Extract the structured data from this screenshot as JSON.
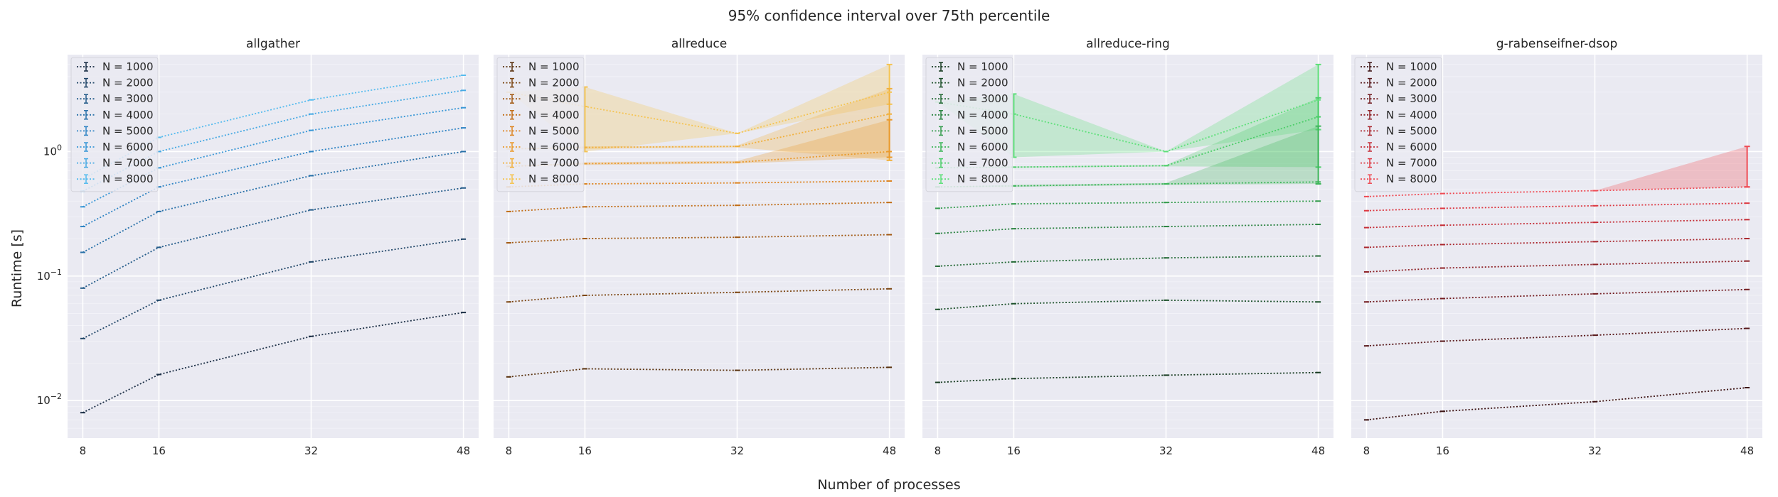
{
  "figure": {
    "title": "95% confidence interval over 75th percentile",
    "xlabel": "Number of processes",
    "ylabel": "Runtime [s]"
  },
  "chart_data": [
    {
      "type": "line",
      "title": "allgather",
      "x": [
        8,
        16,
        32,
        48
      ],
      "y_scale": "log",
      "ylim": [
        0.005,
        6
      ],
      "y_ticks": [
        0.01,
        0.1,
        1
      ],
      "y_tick_labels": [
        "10^-2",
        "10^-1",
        "10^0"
      ],
      "x_ticks": [
        8,
        16,
        32,
        48
      ],
      "legend_position": "upper-left",
      "series": [
        {
          "name": "N = 1000",
          "color": "#1b2e45",
          "values": [
            0.008,
            0.0162,
            0.0328,
            0.051
          ]
        },
        {
          "name": "N = 2000",
          "color": "#1f4567",
          "values": [
            0.0315,
            0.064,
            0.13,
            0.198
          ]
        },
        {
          "name": "N = 3000",
          "color": "#235b89",
          "values": [
            0.08,
            0.17,
            0.34,
            0.51
          ]
        },
        {
          "name": "N = 4000",
          "color": "#2770a8",
          "values": [
            0.155,
            0.33,
            0.64,
            1.0
          ]
        },
        {
          "name": "N = 5000",
          "color": "#2f84c4",
          "values": [
            0.25,
            0.52,
            1.0,
            1.55
          ]
        },
        {
          "name": "N = 6000",
          "color": "#3997d6",
          "values": [
            0.36,
            0.74,
            1.48,
            2.25
          ]
        },
        {
          "name": "N = 7000",
          "color": "#46a9e3",
          "values": [
            0.48,
            1.0,
            2.0,
            3.1
          ]
        },
        {
          "name": "N = 8000",
          "color": "#55bbee",
          "values": [
            0.6,
            1.3,
            2.6,
            4.1
          ]
        }
      ],
      "intervals": []
    },
    {
      "type": "line",
      "title": "allreduce",
      "x": [
        8,
        16,
        32,
        48
      ],
      "y_scale": "log",
      "ylim": [
        0.005,
        6
      ],
      "y_ticks": [
        0.01,
        0.1,
        1
      ],
      "y_tick_labels": [
        "",
        "",
        ""
      ],
      "x_ticks": [
        8,
        16,
        32,
        48
      ],
      "legend_position": "upper-left",
      "series": [
        {
          "name": "N = 1000",
          "color": "#5a3310",
          "values": [
            0.0155,
            0.018,
            0.0175,
            0.0185
          ]
        },
        {
          "name": "N = 2000",
          "color": "#7c4612",
          "values": [
            0.062,
            0.07,
            0.074,
            0.079
          ]
        },
        {
          "name": "N = 3000",
          "color": "#a25a14",
          "values": [
            0.185,
            0.2,
            0.205,
            0.215
          ]
        },
        {
          "name": "N = 4000",
          "color": "#c26e17",
          "values": [
            0.33,
            0.36,
            0.37,
            0.39
          ]
        },
        {
          "name": "N = 5000",
          "color": "#dd8420",
          "values": [
            0.52,
            0.55,
            0.56,
            0.58
          ]
        },
        {
          "name": "N = 6000",
          "color": "#ea9a2c",
          "values": [
            0.76,
            0.8,
            0.82,
            1.0
          ]
        },
        {
          "name": "N = 7000",
          "color": "#f1b03c",
          "values": [
            1.05,
            1.08,
            1.1,
            2.0
          ]
        },
        {
          "name": "N = 8000",
          "color": "#f5c452",
          "values": [
            3.0,
            2.3,
            1.4,
            3.0
          ]
        }
      ],
      "intervals": [
        {
          "series": "N = 8000",
          "lower": [
            3.0,
            1.0,
            1.4,
            2.4
          ],
          "upper": [
            3.0,
            3.3,
            1.4,
            5.0
          ]
        },
        {
          "series": "N = 7000",
          "lower": [
            1.05,
            1.05,
            1.08,
            0.85
          ],
          "upper": [
            1.05,
            1.1,
            1.12,
            3.2
          ]
        },
        {
          "series": "N = 6000",
          "lower": [
            0.76,
            0.78,
            0.8,
            0.9
          ],
          "upper": [
            0.76,
            0.82,
            0.84,
            1.8
          ]
        }
      ]
    },
    {
      "type": "line",
      "title": "allreduce-ring",
      "x": [
        8,
        16,
        32,
        48
      ],
      "y_scale": "log",
      "ylim": [
        0.005,
        6
      ],
      "y_ticks": [
        0.01,
        0.1,
        1
      ],
      "y_tick_labels": [
        "",
        "",
        ""
      ],
      "x_ticks": [
        8,
        16,
        32,
        48
      ],
      "legend_position": "upper-left",
      "series": [
        {
          "name": "N = 1000",
          "color": "#163a20",
          "values": [
            0.014,
            0.015,
            0.016,
            0.0168
          ]
        },
        {
          "name": "N = 2000",
          "color": "#1d512b",
          "values": [
            0.054,
            0.06,
            0.064,
            0.062
          ]
        },
        {
          "name": "N = 3000",
          "color": "#246a36",
          "values": [
            0.12,
            0.13,
            0.14,
            0.145
          ]
        },
        {
          "name": "N = 4000",
          "color": "#2b8341",
          "values": [
            0.22,
            0.24,
            0.25,
            0.26
          ]
        },
        {
          "name": "N = 5000",
          "color": "#349c4d",
          "values": [
            0.35,
            0.38,
            0.39,
            0.4
          ]
        },
        {
          "name": "N = 6000",
          "color": "#3eb65a",
          "values": [
            0.52,
            0.53,
            0.55,
            0.57
          ]
        },
        {
          "name": "N = 7000",
          "color": "#4acd67",
          "values": [
            0.74,
            0.75,
            0.77,
            1.9
          ]
        },
        {
          "name": "N = 8000",
          "color": "#5ee07a",
          "values": [
            2.5,
            2.0,
            1.0,
            2.6
          ]
        }
      ],
      "intervals": [
        {
          "series": "N = 8000",
          "lower": [
            2.5,
            0.9,
            1.0,
            1.5
          ],
          "upper": [
            2.5,
            2.9,
            1.0,
            5.0
          ]
        },
        {
          "series": "N = 7000",
          "lower": [
            0.74,
            0.74,
            0.76,
            0.75
          ],
          "upper": [
            0.74,
            0.76,
            0.78,
            2.7
          ]
        },
        {
          "series": "N = 6000",
          "lower": [
            0.52,
            0.52,
            0.54,
            0.55
          ],
          "upper": [
            0.52,
            0.54,
            0.56,
            1.6
          ]
        }
      ]
    },
    {
      "type": "line",
      "title": "g-rabenseifner-dsop",
      "x": [
        8,
        16,
        32,
        48
      ],
      "y_scale": "log",
      "ylim": [
        0.005,
        6
      ],
      "y_ticks": [
        0.01,
        0.1,
        1
      ],
      "y_tick_labels": [
        "",
        "",
        ""
      ],
      "x_ticks": [
        8,
        16,
        32,
        48
      ],
      "legend_position": "upper-left",
      "series": [
        {
          "name": "N = 1000",
          "color": "#3c1212",
          "values": [
            0.007,
            0.0082,
            0.0098,
            0.0127
          ]
        },
        {
          "name": "N = 2000",
          "color": "#571719",
          "values": [
            0.0275,
            0.03,
            0.0335,
            0.038
          ]
        },
        {
          "name": "N = 3000",
          "color": "#731c20",
          "values": [
            0.062,
            0.066,
            0.072,
            0.078
          ]
        },
        {
          "name": "N = 4000",
          "color": "#8e2227",
          "values": [
            0.108,
            0.116,
            0.124,
            0.132
          ]
        },
        {
          "name": "N = 5000",
          "color": "#aa272e",
          "values": [
            0.17,
            0.179,
            0.189,
            0.2
          ]
        },
        {
          "name": "N = 6000",
          "color": "#c52d36",
          "values": [
            0.245,
            0.256,
            0.27,
            0.284
          ]
        },
        {
          "name": "N = 7000",
          "color": "#dd3841",
          "values": [
            0.335,
            0.35,
            0.367,
            0.385
          ]
        },
        {
          "name": "N = 8000",
          "color": "#ef4a53",
          "values": [
            0.435,
            0.46,
            0.485,
            0.52
          ]
        }
      ],
      "intervals": [
        {
          "series": "N = 8000",
          "lower": [
            0.435,
            0.46,
            0.485,
            0.52
          ],
          "upper": [
            0.435,
            0.46,
            0.485,
            1.1
          ]
        }
      ]
    }
  ]
}
